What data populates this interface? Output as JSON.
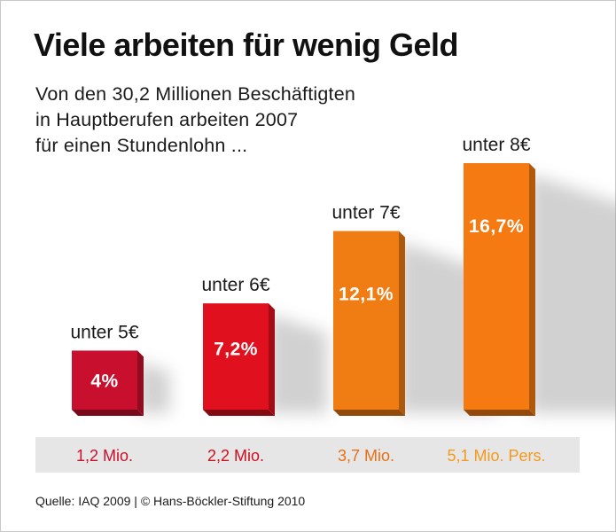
{
  "title": "Viele arbeiten für wenig Geld",
  "subtitle_lines": [
    "Von den 30,2 Millionen Beschäftigten",
    "in Hauptberufen arbeiten 2007",
    "für einen Stundenlohn ..."
  ],
  "source": "Quelle: IAQ 2009 | © Hans-Böckler-Stiftung 2010",
  "colors": {
    "bar_1": "#c8102e",
    "bar_2": "#e0101e",
    "bar_3": "#f07d14",
    "bar_4": "#f57a12",
    "value_strip": "#e6e6e6",
    "count_1": "#c8102e",
    "count_2": "#cc1020",
    "count_3": "#e87014",
    "count_4": "#f39a1e"
  },
  "chart_data": {
    "type": "bar",
    "categories": [
      "unter 5€",
      "unter 6€",
      "unter 7€",
      "unter 8€"
    ],
    "series": [
      {
        "values": [
          4,
          7.2,
          12.1,
          16.7
        ],
        "labels": [
          "4%",
          "7,2%",
          "12,1%",
          "16,7%"
        ]
      }
    ],
    "counts": [
      "1,2 Mio.",
      "2,2 Mio.",
      "3,7 Mio.",
      "5,1 Mio. Pers."
    ],
    "unit": "%",
    "ylim": [
      0,
      18
    ],
    "grid": false,
    "legend": "none"
  }
}
